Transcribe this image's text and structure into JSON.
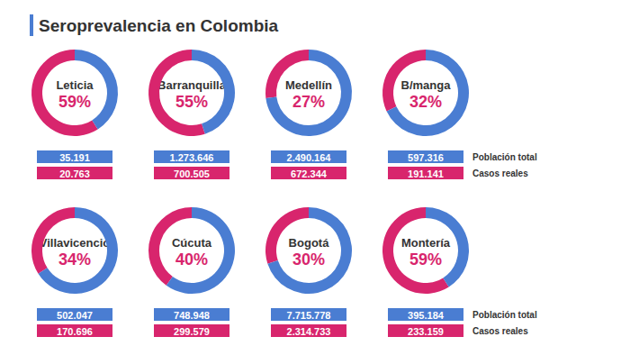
{
  "title": "Seroprevalencia en Colombia",
  "row_labels": [
    "Población total",
    "Casos reales"
  ],
  "chart_data": [
    {
      "type": "pie",
      "title": "Leticia",
      "values": [
        59,
        41
      ],
      "value_labels": [
        "59%",
        null
      ],
      "colors": [
        "#d8256d",
        "#4a7dd2"
      ],
      "population": {
        "value": 35191,
        "label": "35.191"
      },
      "cases": {
        "value": 20763,
        "label": "20.763"
      }
    },
    {
      "type": "pie",
      "title": "Barranquilla",
      "values": [
        55,
        45
      ],
      "value_labels": [
        "55%",
        null
      ],
      "colors": [
        "#d8256d",
        "#4a7dd2"
      ],
      "population": {
        "value": 1273646,
        "label": "1.273.646"
      },
      "cases": {
        "value": 700505,
        "label": "700.505"
      }
    },
    {
      "type": "pie",
      "title": "Medellín",
      "values": [
        27,
        73
      ],
      "value_labels": [
        "27%",
        null
      ],
      "colors": [
        "#d8256d",
        "#4a7dd2"
      ],
      "population": {
        "value": 2490164,
        "label": "2.490.164"
      },
      "cases": {
        "value": 672344,
        "label": "672.344"
      }
    },
    {
      "type": "pie",
      "title": "B/manga",
      "values": [
        32,
        68
      ],
      "value_labels": [
        "32%",
        null
      ],
      "colors": [
        "#d8256d",
        "#4a7dd2"
      ],
      "population": {
        "value": 597316,
        "label": "597.316"
      },
      "cases": {
        "value": 191141,
        "label": "191.141"
      }
    },
    {
      "type": "pie",
      "title": "Villavicencio",
      "values": [
        34,
        66
      ],
      "value_labels": [
        "34%",
        null
      ],
      "colors": [
        "#d8256d",
        "#4a7dd2"
      ],
      "population": {
        "value": 502047,
        "label": "502.047"
      },
      "cases": {
        "value": 170696,
        "label": "170.696"
      }
    },
    {
      "type": "pie",
      "title": "Cúcuta",
      "values": [
        40,
        60
      ],
      "value_labels": [
        "40%",
        null
      ],
      "colors": [
        "#d8256d",
        "#4a7dd2"
      ],
      "population": {
        "value": 748948,
        "label": "748.948"
      },
      "cases": {
        "value": 299579,
        "label": "299.579"
      }
    },
    {
      "type": "pie",
      "title": "Bogotá",
      "values": [
        30,
        70
      ],
      "value_labels": [
        "30%",
        null
      ],
      "colors": [
        "#d8256d",
        "#4a7dd2"
      ],
      "population": {
        "value": 7715778,
        "label": "7.715.778"
      },
      "cases": {
        "value": 2314733,
        "label": "2.314.733"
      }
    },
    {
      "type": "pie",
      "title": "Montería",
      "values": [
        59,
        41
      ],
      "value_labels": [
        "59%",
        null
      ],
      "colors": [
        "#d8256d",
        "#4a7dd2"
      ],
      "population": {
        "value": 395184,
        "label": "395.184"
      },
      "cases": {
        "value": 233159,
        "label": "233.159"
      }
    }
  ]
}
